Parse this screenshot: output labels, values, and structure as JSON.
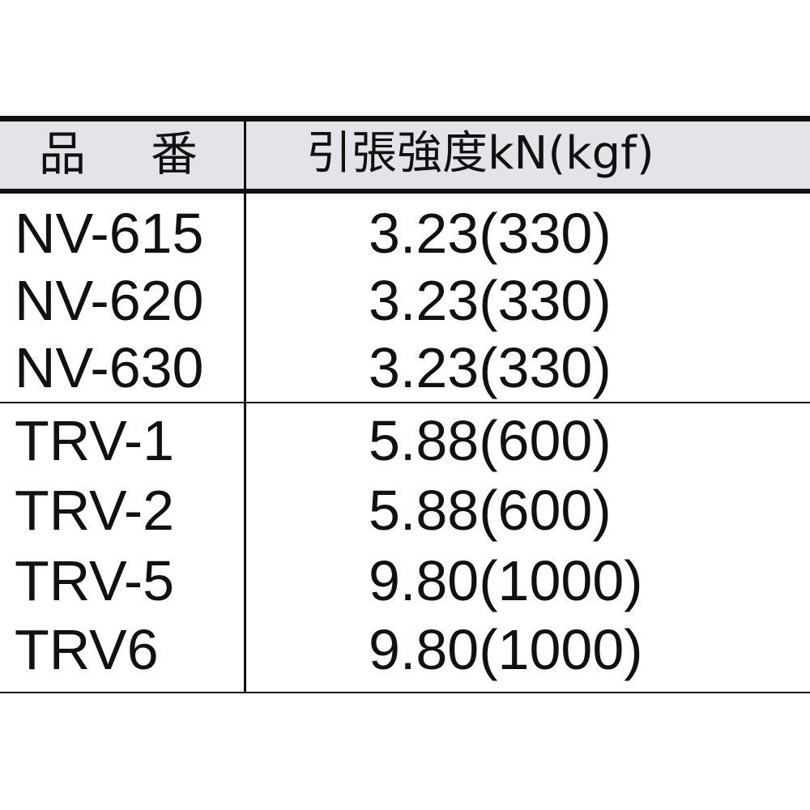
{
  "table": {
    "headers": {
      "part": [
        "品",
        "番"
      ],
      "strength": "引張強度kN(kgf)"
    },
    "rows": [
      {
        "part": "NV-615",
        "strength": "3.23(330)"
      },
      {
        "part": "NV-620",
        "strength": "3.23(330)"
      },
      {
        "part": "NV-630",
        "strength": "3.23(330)"
      },
      {
        "part": "TRV-1",
        "strength": "5.88(600)"
      },
      {
        "part": "TRV-2",
        "strength": "5.88(600)"
      },
      {
        "part": "TRV-5",
        "strength": "9.80(1000)"
      },
      {
        "part": "TRV6",
        "strength": "9.80(1000)"
      }
    ]
  },
  "colors": {
    "header_bg": "#e2e4e8",
    "lines": "#111111"
  }
}
